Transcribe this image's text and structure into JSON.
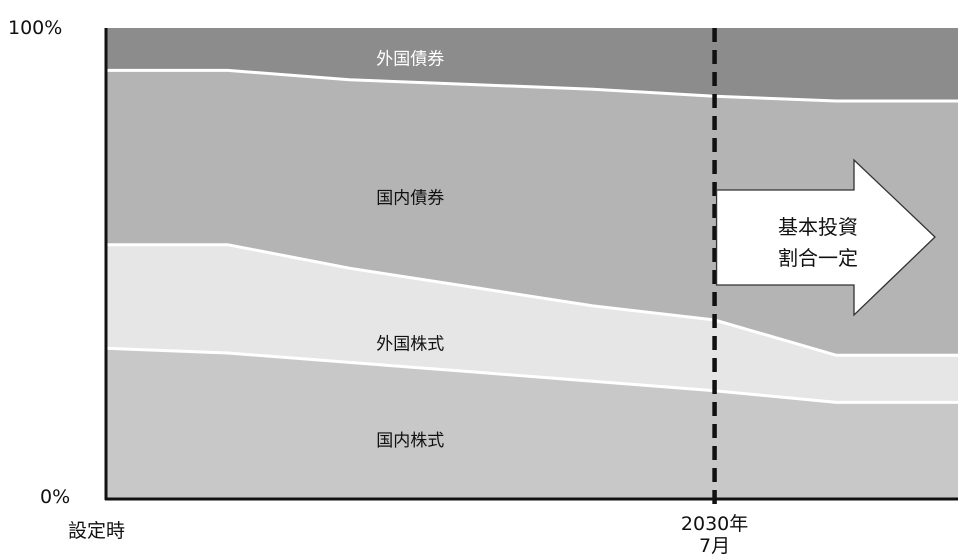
{
  "chart_data": {
    "type": "area",
    "stacked": true,
    "y_tick_labels": [
      "100%",
      "0%"
    ],
    "ylim": [
      0,
      100
    ],
    "x_tick_labels": [
      "設定時",
      "2030年\n7月"
    ],
    "x": [
      0,
      2,
      4,
      6,
      8,
      10,
      12,
      14
    ],
    "marker_x": 10,
    "series": [
      {
        "name": "国内株式",
        "values": [
          32,
          31,
          29,
          27,
          25,
          23,
          20.5,
          20.5
        ],
        "color": "#c8c8c8"
      },
      {
        "name": "外国株式",
        "values": [
          22,
          23,
          20,
          18,
          16,
          15,
          10,
          10
        ],
        "color": "#e6e6e6"
      },
      {
        "name": "国内債券",
        "values": [
          37,
          37,
          40,
          43,
          46,
          47.5,
          54,
          54
        ],
        "color": "#b4b4b4"
      },
      {
        "name": "外国債券",
        "values": [
          9,
          9,
          11,
          12,
          13,
          14.5,
          15.5,
          15.5
        ],
        "color": "#8c8c8c"
      }
    ],
    "annotation": {
      "lines": [
        "基本投資",
        "割合一定"
      ]
    },
    "grid": false,
    "legend": "none"
  }
}
